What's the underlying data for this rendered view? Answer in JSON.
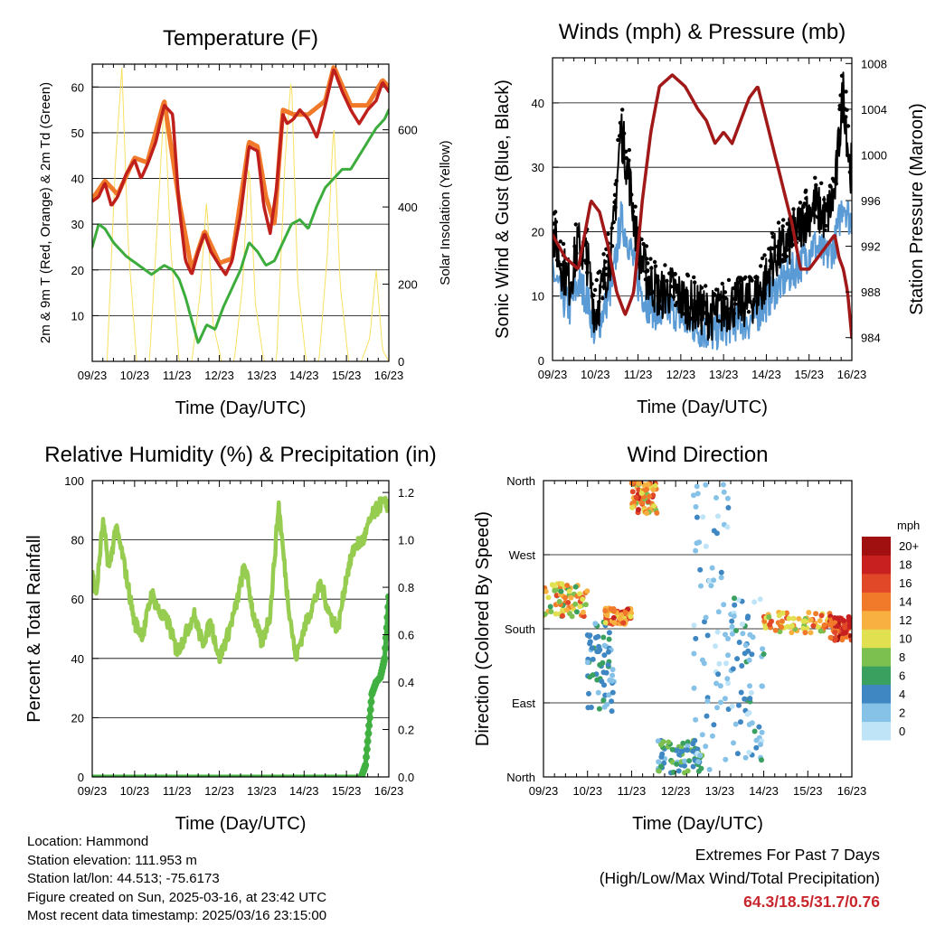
{
  "info": {
    "location": "Location: Hammond",
    "elevation": "Station elevation: 111.953 m",
    "latlon": "Station lat/lon: 44.513; -75.6173",
    "created": "Figure created on Sun, 2025-03-16, at 23:42 UTC",
    "recent": "Most recent data timestamp: 2025/03/16 23:15:00"
  },
  "extremes": {
    "line1": "Extremes For Past 7 Days",
    "line2": "(High/Low/Max Wind/Total Precipitation)",
    "values": "64.3/18.5/31.7/0.76"
  },
  "colors": {
    "temp2m": "#c0201c",
    "temp9m": "#f07a2a",
    "dewpoint": "#3cac3c",
    "solar": "#f8e060",
    "wind": "#5b9bd5",
    "gust": "#000000",
    "pressure": "#a01818",
    "rh": "#96cc50",
    "precip": "#40b040",
    "speed_scale": [
      "#bfe4f7",
      "#86c2e8",
      "#3f87c2",
      "#3aa060",
      "#7cc050",
      "#e0e050",
      "#f8b040",
      "#f07a2a",
      "#e04828",
      "#c82020",
      "#a01010"
    ]
  },
  "chart_data": [
    {
      "type": "line",
      "title": "Temperature (F)",
      "xlabel": "Time (Day/UTC)",
      "ylabel": "2m & 9m T (Red, Orange) & 2m Td (Green)",
      "ylabel_right": "Solar Insolation (Yellow)",
      "x_ticks": [
        "09/23",
        "10/23",
        "11/23",
        "12/23",
        "13/23",
        "14/23",
        "15/23",
        "16/23"
      ],
      "xlim": [
        0,
        7
      ],
      "ylim": [
        0,
        65
      ],
      "y_ticks": [
        10,
        20,
        30,
        40,
        50,
        60
      ],
      "ylim_right": [
        0,
        770
      ],
      "y_ticks_right": [
        0,
        200,
        400,
        600
      ],
      "grid": true,
      "series": [
        {
          "name": "2m T",
          "axis": "left",
          "x": [
            0,
            0.15,
            0.3,
            0.45,
            0.6,
            0.8,
            1.0,
            1.15,
            1.3,
            1.5,
            1.7,
            1.9,
            2.05,
            2.2,
            2.35,
            2.5,
            2.65,
            2.8,
            3.0,
            3.15,
            3.3,
            3.5,
            3.7,
            3.9,
            4.05,
            4.2,
            4.35,
            4.5,
            4.6,
            4.75,
            4.9,
            5.1,
            5.3,
            5.5,
            5.7,
            5.9,
            6.1,
            6.3,
            6.5,
            6.7,
            6.85,
            7.0
          ],
          "y": [
            35,
            36,
            39,
            34,
            36,
            41,
            44,
            40,
            43,
            48,
            56,
            54,
            34,
            22,
            19,
            24,
            28,
            24,
            21,
            19,
            22,
            32,
            47,
            46,
            34,
            28,
            38,
            54,
            52,
            53,
            55,
            53,
            49,
            56,
            64,
            59,
            55,
            52,
            55,
            57,
            61,
            59
          ]
        },
        {
          "name": "9m T",
          "axis": "left",
          "x": [
            0,
            0.3,
            0.6,
            1.0,
            1.3,
            1.7,
            2.05,
            2.35,
            2.65,
            3.0,
            3.3,
            3.7,
            3.9,
            4.1,
            4.3,
            4.5,
            4.75,
            5.1,
            5.5,
            5.7,
            6.1,
            6.5,
            6.85,
            7.0
          ],
          "y": [
            35.5,
            39.5,
            36.5,
            44.5,
            43.5,
            57,
            35,
            20,
            28.5,
            21.5,
            22.5,
            48,
            47,
            36,
            30,
            55,
            54,
            54,
            57,
            64.5,
            56,
            56,
            61.5,
            60
          ]
        },
        {
          "name": "2m Td",
          "axis": "left",
          "x": [
            0,
            0.15,
            0.3,
            0.5,
            0.8,
            1.1,
            1.4,
            1.7,
            1.9,
            2.05,
            2.2,
            2.35,
            2.5,
            2.7,
            2.9,
            3.1,
            3.3,
            3.5,
            3.7,
            3.9,
            4.1,
            4.3,
            4.5,
            4.7,
            4.9,
            5.1,
            5.3,
            5.5,
            5.7,
            5.9,
            6.1,
            6.3,
            6.5,
            6.7,
            6.9,
            7.0
          ],
          "y": [
            25,
            30,
            29,
            26,
            23,
            21,
            19,
            21,
            20,
            18,
            14,
            9,
            4,
            8,
            7,
            12,
            16,
            20,
            26,
            24,
            21,
            22,
            26,
            30,
            31,
            29,
            34,
            38,
            40,
            42,
            42,
            45,
            48,
            51,
            53,
            55
          ]
        },
        {
          "name": "Solar",
          "axis": "right",
          "x": [
            0,
            0.35,
            0.55,
            0.7,
            0.85,
            1.05,
            1.35,
            1.55,
            1.7,
            1.85,
            2.05,
            2.35,
            2.55,
            2.7,
            2.85,
            3.05,
            3.35,
            3.55,
            3.7,
            3.85,
            4.05,
            4.35,
            4.55,
            4.7,
            4.85,
            5.05,
            5.35,
            5.55,
            5.7,
            5.85,
            6.05,
            6.35,
            6.55,
            6.7,
            6.85,
            7.0
          ],
          "y": [
            0,
            0,
            520,
            760,
            300,
            0,
            0,
            380,
            680,
            300,
            0,
            0,
            180,
            420,
            100,
            0,
            0,
            200,
            520,
            150,
            0,
            0,
            520,
            740,
            200,
            0,
            0,
            280,
            620,
            200,
            0,
            0,
            60,
            240,
            30,
            0
          ]
        }
      ]
    },
    {
      "type": "line",
      "title": "Winds (mph) & Pressure (mb)",
      "xlabel": "Time (Day/UTC)",
      "ylabel": "Sonic Wind & Gust (Blue, Black)",
      "ylabel_right": "Station Pressure (Maroon)",
      "x_ticks": [
        "09/23",
        "10/23",
        "11/23",
        "12/23",
        "13/23",
        "14/23",
        "15/23",
        "16/23"
      ],
      "xlim": [
        0,
        7
      ],
      "ylim": [
        0,
        47
      ],
      "y_ticks": [
        0,
        10,
        20,
        30,
        40
      ],
      "ylim_right": [
        982,
        1008.5
      ],
      "y_ticks_right": [
        984,
        988,
        992,
        996,
        1000,
        1004,
        1008
      ],
      "grid": true,
      "series": [
        {
          "name": "Wind",
          "axis": "left",
          "x": [
            0,
            0.2,
            0.4,
            0.6,
            0.8,
            1.0,
            1.2,
            1.4,
            1.6,
            1.8,
            2.0,
            2.2,
            2.5,
            2.8,
            3.1,
            3.4,
            3.7,
            4.0,
            4.3,
            4.6,
            4.9,
            5.2,
            5.5,
            5.8,
            6.1,
            6.4,
            6.6,
            6.8,
            6.95
          ],
          "y": [
            14,
            10,
            8,
            12,
            10,
            4,
            8,
            12,
            22,
            18,
            12,
            9,
            7,
            8,
            6,
            5,
            4,
            5,
            6,
            6,
            8,
            11,
            13,
            15,
            18,
            16,
            18,
            25,
            22
          ]
        },
        {
          "name": "Gust",
          "axis": "left",
          "x": [
            0,
            0.2,
            0.4,
            0.6,
            0.8,
            1.0,
            1.2,
            1.4,
            1.6,
            1.8,
            2.0,
            2.2,
            2.5,
            2.8,
            3.1,
            3.4,
            3.7,
            4.0,
            4.3,
            4.6,
            4.9,
            5.2,
            5.5,
            5.8,
            6.1,
            6.4,
            6.6,
            6.8,
            6.95
          ],
          "y": [
            20,
            15,
            12,
            18,
            16,
            7,
            12,
            18,
            36,
            28,
            17,
            13,
            10,
            11,
            9,
            8,
            7,
            8,
            9,
            9,
            11,
            16,
            18,
            21,
            24,
            22,
            26,
            42,
            30
          ]
        },
        {
          "name": "Pressure",
          "axis": "right",
          "x": [
            0,
            0.3,
            0.6,
            0.9,
            1.1,
            1.3,
            1.5,
            1.7,
            1.9,
            2.1,
            2.3,
            2.5,
            2.8,
            3.1,
            3.4,
            3.6,
            3.8,
            4.0,
            4.2,
            4.4,
            4.6,
            4.8,
            5.0,
            5.2,
            5.4,
            5.6,
            5.8,
            6.0,
            6.2,
            6.4,
            6.6,
            6.7,
            6.8,
            6.9,
            7.0
          ],
          "y": [
            993,
            991,
            990,
            996,
            995,
            992,
            988,
            986,
            988,
            996,
            1002,
            1006,
            1007,
            1006,
            1004,
            1003,
            1001,
            1002,
            1001,
            1003,
            1005,
            1006,
            1003,
            1000,
            997,
            994,
            990,
            990,
            991,
            992,
            993,
            991,
            990,
            988,
            984
          ]
        }
      ]
    },
    {
      "type": "line",
      "title": "Relative Humidity (%) & Precipitation (in)",
      "xlabel": "Time (Day/UTC)",
      "ylabel": "Percent & Total Rainfall",
      "x_ticks": [
        "09/23",
        "10/23",
        "11/23",
        "12/23",
        "13/23",
        "14/23",
        "15/23",
        "16/23"
      ],
      "xlim": [
        0,
        7
      ],
      "ylim": [
        0,
        100
      ],
      "y_ticks": [
        0,
        20,
        40,
        60,
        80,
        100
      ],
      "ylim_right": [
        0,
        1.25
      ],
      "y_ticks_right": [
        0.0,
        0.2,
        0.4,
        0.6,
        0.8,
        1.0,
        1.2
      ],
      "grid": true,
      "series": [
        {
          "name": "RH",
          "axis": "left",
          "x": [
            0,
            0.1,
            0.25,
            0.4,
            0.55,
            0.7,
            0.85,
            1.0,
            1.2,
            1.4,
            1.6,
            1.8,
            2.0,
            2.2,
            2.4,
            2.6,
            2.8,
            3.0,
            3.2,
            3.4,
            3.6,
            3.8,
            4.0,
            4.2,
            4.4,
            4.6,
            4.8,
            5.0,
            5.2,
            5.4,
            5.6,
            5.8,
            6.0,
            6.2,
            6.4,
            6.6,
            6.8,
            7.0
          ],
          "y": [
            68,
            62,
            86,
            70,
            84,
            76,
            64,
            52,
            48,
            62,
            55,
            52,
            42,
            48,
            55,
            45,
            52,
            40,
            48,
            58,
            72,
            55,
            45,
            55,
            92,
            62,
            40,
            50,
            58,
            65,
            55,
            50,
            68,
            78,
            80,
            88,
            92,
            92
          ]
        },
        {
          "name": "Precip",
          "axis": "right",
          "x": [
            0,
            6.35,
            6.45,
            6.55,
            6.6,
            6.7,
            6.8,
            6.9,
            7.0
          ],
          "y": [
            0,
            0,
            0.05,
            0.25,
            0.35,
            0.4,
            0.42,
            0.5,
            0.76
          ]
        }
      ]
    },
    {
      "type": "scatter",
      "title": "Wind Direction",
      "xlabel": "Time (Day/UTC)",
      "ylabel": "Direction (Colored By Speed)",
      "x_ticks": [
        "09/23",
        "10/23",
        "11/23",
        "12/23",
        "13/23",
        "14/23",
        "15/23",
        "16/23"
      ],
      "xlim": [
        0,
        7
      ],
      "y_ticks": [
        "North",
        "East",
        "South",
        "West",
        "North"
      ],
      "y_tick_values": [
        0,
        90,
        180,
        270,
        360
      ],
      "ylim": [
        0,
        360
      ],
      "legend_title": "mph",
      "legend_labels": [
        "0",
        "2",
        "4",
        "6",
        "8",
        "10",
        "12",
        "14",
        "16",
        "18",
        "20+"
      ],
      "legend_position": "right",
      "grid": true,
      "clusters": [
        {
          "x": [
            0.0,
            1.0
          ],
          "dir": [
            195,
            235
          ],
          "speed": [
            6,
            16
          ]
        },
        {
          "x": [
            1.0,
            1.6
          ],
          "dir": [
            80,
            190
          ],
          "speed": [
            2,
            6
          ]
        },
        {
          "x": [
            1.4,
            2.0
          ],
          "dir": [
            185,
            205
          ],
          "speed": [
            10,
            18
          ]
        },
        {
          "x": [
            2.0,
            2.6
          ],
          "dir": [
            320,
            360
          ],
          "speed": [
            8,
            18
          ]
        },
        {
          "x": [
            2.6,
            3.6
          ],
          "dir": [
            5,
            45
          ],
          "speed": [
            2,
            8
          ]
        },
        {
          "x": [
            3.4,
            4.2
          ],
          "dir": [
            5,
            360
          ],
          "speed": [
            0,
            4
          ]
        },
        {
          "x": [
            4.2,
            5.0
          ],
          "dir": [
            20,
            220
          ],
          "speed": [
            0,
            6
          ]
        },
        {
          "x": [
            5.0,
            6.5
          ],
          "dir": [
            175,
            200
          ],
          "speed": [
            8,
            16
          ]
        },
        {
          "x": [
            6.5,
            7.0
          ],
          "dir": [
            165,
            195
          ],
          "speed": [
            14,
            20
          ]
        }
      ]
    }
  ]
}
